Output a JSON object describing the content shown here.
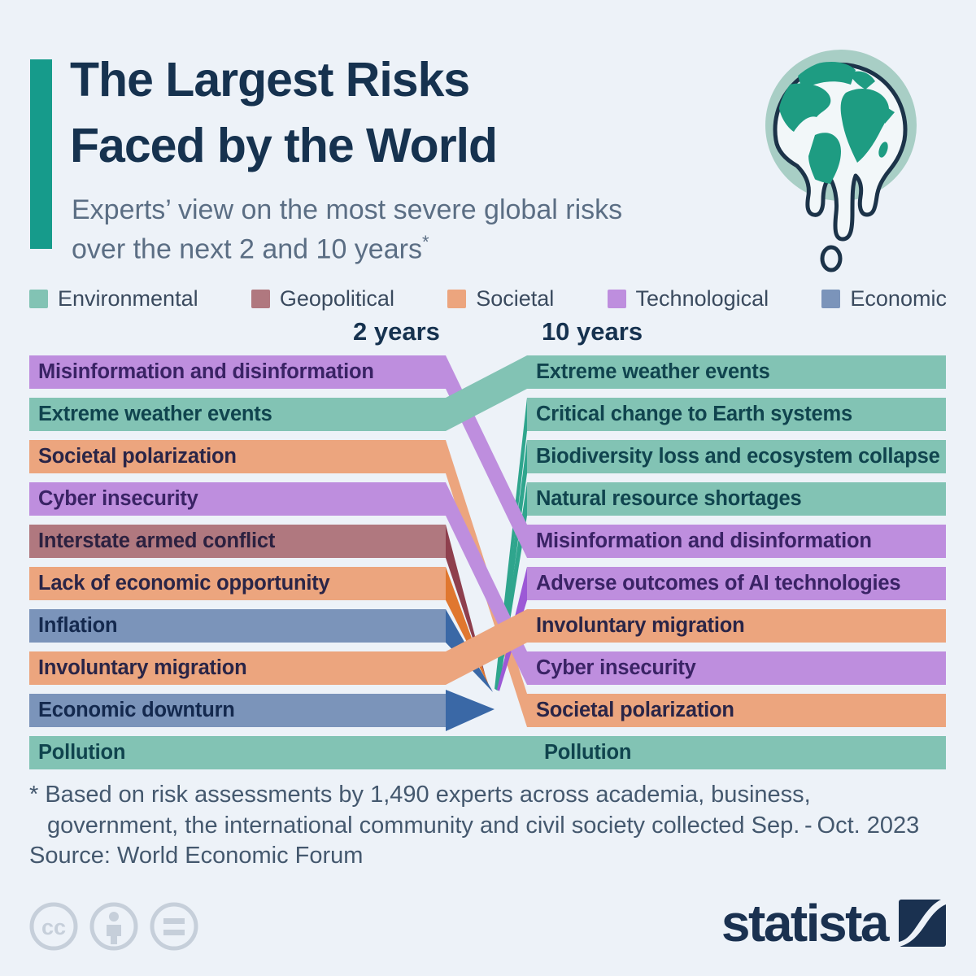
{
  "header": {
    "title_line1": "The Largest Risks",
    "title_line2": "Faced by the World",
    "subtitle_line1": "Experts’ view on the most severe global risks",
    "subtitle_line2": "over the next 2 and 10 years",
    "subtitle_asterisk": "*"
  },
  "columns": {
    "left": "2 years",
    "right": "10 years"
  },
  "legend": [
    {
      "label": "Environmental",
      "category": "Environmental"
    },
    {
      "label": "Geopolitical",
      "category": "Geopolitical"
    },
    {
      "label": "Societal",
      "category": "Societal"
    },
    {
      "label": "Technological",
      "category": "Technological"
    },
    {
      "label": "Economic",
      "category": "Economic"
    }
  ],
  "colors": {
    "background": "#EDF2F8",
    "title": "#16324F",
    "subtitle": "#5B6E84",
    "accent_teal": "#169B8B",
    "arrow_exit": "#3A68A6",
    "categories": {
      "Environmental": {
        "bar": "#82C3B4",
        "text": "#10444E",
        "enter": "#2FA58D",
        "exit": "#2FA58D"
      },
      "Geopolitical": {
        "bar": "#B0787F",
        "text": "#2C2140",
        "enter": "#8E3F4D",
        "exit": "#8E3F4D"
      },
      "Societal": {
        "bar": "#ECA57E",
        "text": "#2A2547",
        "enter": "#E0772F",
        "exit": "#E0772F"
      },
      "Technological": {
        "bar": "#BE8EDE",
        "text": "#3A2365",
        "enter": "#9C59D6",
        "exit": "#9C59D6"
      },
      "Economic": {
        "bar": "#7B94BA",
        "text": "#14294E",
        "enter": "#3A68A6",
        "exit": "#3A68A6"
      }
    }
  },
  "chart_data": {
    "type": "slope-ranking",
    "title": "The Largest Risks Faced by the World",
    "subtitle": "Experts’ view on the most severe global risks over the next 2 and 10 years*",
    "left_column_label": "2 years",
    "right_column_label": "10 years",
    "left_ranking": [
      {
        "rank": 1,
        "label": "Misinformation and disinformation",
        "category": "Technological"
      },
      {
        "rank": 2,
        "label": "Extreme weather events",
        "category": "Environmental"
      },
      {
        "rank": 3,
        "label": "Societal polarization",
        "category": "Societal"
      },
      {
        "rank": 4,
        "label": "Cyber insecurity",
        "category": "Technological"
      },
      {
        "rank": 5,
        "label": "Interstate armed conflict",
        "category": "Geopolitical"
      },
      {
        "rank": 6,
        "label": "Lack of economic opportunity",
        "category": "Societal"
      },
      {
        "rank": 7,
        "label": "Inflation",
        "category": "Economic"
      },
      {
        "rank": 8,
        "label": "Involuntary migration",
        "category": "Societal"
      },
      {
        "rank": 9,
        "label": "Economic downturn",
        "category": "Economic"
      },
      {
        "rank": 10,
        "label": "Pollution",
        "category": "Environmental"
      }
    ],
    "right_ranking": [
      {
        "rank": 1,
        "label": "Extreme weather events",
        "category": "Environmental"
      },
      {
        "rank": 2,
        "label": "Critical change to Earth systems",
        "category": "Environmental"
      },
      {
        "rank": 3,
        "label": "Biodiversity loss and ecosystem collapse",
        "category": "Environmental"
      },
      {
        "rank": 4,
        "label": "Natural resource shortages",
        "category": "Environmental"
      },
      {
        "rank": 5,
        "label": "Misinformation and disinformation",
        "category": "Technological"
      },
      {
        "rank": 6,
        "label": "Adverse outcomes of AI technologies",
        "category": "Technological"
      },
      {
        "rank": 7,
        "label": "Involuntary migration",
        "category": "Societal"
      },
      {
        "rank": 8,
        "label": "Cyber insecurity",
        "category": "Technological"
      },
      {
        "rank": 9,
        "label": "Societal polarization",
        "category": "Societal"
      },
      {
        "rank": 10,
        "label": "Pollution",
        "category": "Environmental"
      }
    ],
    "flows": [
      {
        "label": "Misinformation and disinformation",
        "from_rank": 1,
        "to_rank": 5,
        "kind": "persist",
        "category": "Technological"
      },
      {
        "label": "Extreme weather events",
        "from_rank": 2,
        "to_rank": 1,
        "kind": "persist",
        "category": "Environmental"
      },
      {
        "label": "Societal polarization",
        "from_rank": 3,
        "to_rank": 9,
        "kind": "persist",
        "category": "Societal"
      },
      {
        "label": "Cyber insecurity",
        "from_rank": 4,
        "to_rank": 8,
        "kind": "persist",
        "category": "Technological"
      },
      {
        "label": "Interstate armed conflict",
        "from_rank": 5,
        "to_rank": null,
        "kind": "exits",
        "category": "Geopolitical"
      },
      {
        "label": "Lack of economic opportunity",
        "from_rank": 6,
        "to_rank": null,
        "kind": "exits",
        "category": "Societal"
      },
      {
        "label": "Inflation",
        "from_rank": 7,
        "to_rank": null,
        "kind": "exits",
        "category": "Economic"
      },
      {
        "label": "Involuntary migration",
        "from_rank": 8,
        "to_rank": 7,
        "kind": "persist",
        "category": "Societal"
      },
      {
        "label": "Economic downturn",
        "from_rank": 9,
        "to_rank": null,
        "kind": "exits_arrow",
        "category": "Economic"
      },
      {
        "label": "Pollution",
        "from_rank": 10,
        "to_rank": 10,
        "kind": "continuous",
        "category": "Environmental"
      },
      {
        "label": "Critical change to Earth systems",
        "from_rank": null,
        "to_rank": 2,
        "kind": "enters",
        "category": "Environmental"
      },
      {
        "label": "Biodiversity loss and ecosystem collapse",
        "from_rank": null,
        "to_rank": 3,
        "kind": "enters",
        "category": "Environmental"
      },
      {
        "label": "Natural resource shortages",
        "from_rank": null,
        "to_rank": 4,
        "kind": "enters",
        "category": "Environmental"
      },
      {
        "label": "Adverse outcomes of AI technologies",
        "from_rank": null,
        "to_rank": 6,
        "kind": "enters",
        "category": "Technological"
      }
    ]
  },
  "footnote": {
    "line1": "* Based on risk assessments by 1,490 experts across academia, business,",
    "line2": "government, the international community and civil society collected Sep. - Oct. 2023"
  },
  "source": "Source: World Economic Forum",
  "footer": {
    "license_icons": [
      "cc-icon",
      "attribution-person-icon",
      "equals-icon"
    ],
    "brand": "statista"
  }
}
